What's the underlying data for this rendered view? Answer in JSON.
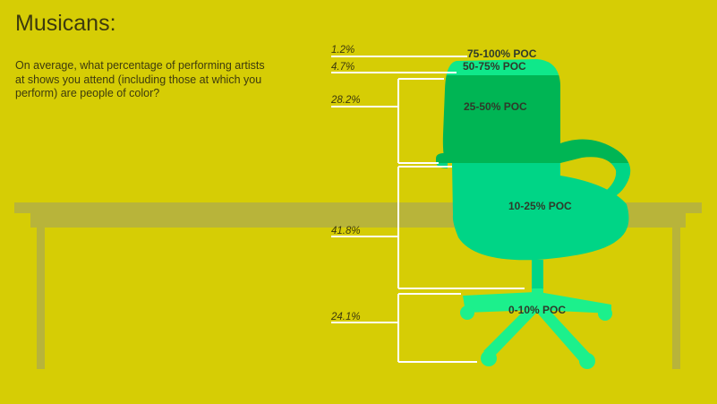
{
  "title": "Musicans:",
  "question": "On average, what percentage of performing artists at shows you attend (including those at which you perform) are people of color?",
  "colors": {
    "background": "#d6cd05",
    "table": "#b8b43a",
    "seg_75_100": "#3a52c8",
    "seg_50_75": "#0fe88a",
    "seg_25_50": "#00b554",
    "seg_10_25": "#00d586",
    "seg_0_10": "#1cf08c"
  },
  "chart_data": {
    "type": "bar",
    "title": "Musicans:",
    "categories": [
      "75-100% POC",
      "50-75% POC",
      "25-50% POC",
      "10-25% POC",
      "0-10% POC"
    ],
    "values": [
      1.2,
      4.7,
      28.2,
      41.8,
      24.1
    ],
    "value_labels": [
      "1.2%",
      "4.7%",
      "28.2%",
      "41.8%",
      "24.1%"
    ],
    "unit": "%",
    "stacked": true
  }
}
